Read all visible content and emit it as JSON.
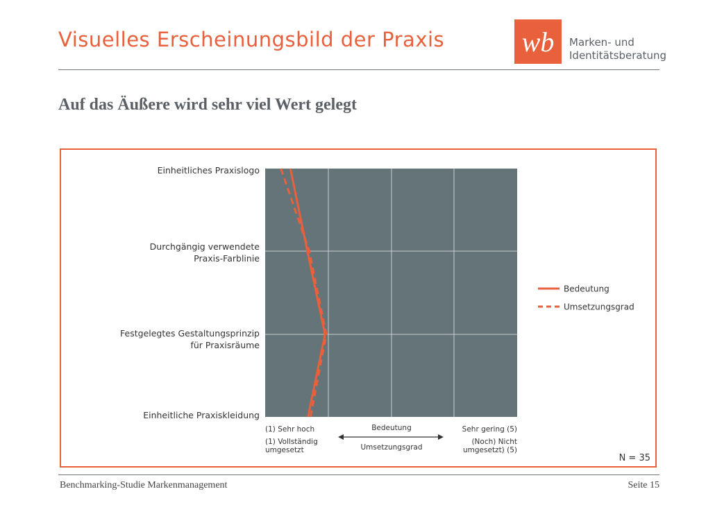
{
  "header": {
    "title": "Visuelles Erscheinungsbild der Praxis",
    "subtitle": "Auf das Äußere wird sehr viel Wert gelegt",
    "logo_mark": "wb",
    "logo_line1": "Marken- und",
    "logo_line2": "Identitätsberatung",
    "accent_color": "#e8603c"
  },
  "footer": {
    "left": "Benchmarking-Studie Markenmanagement",
    "right": "Seite 15"
  },
  "chart_data": {
    "type": "line",
    "categories": [
      "Einheitliches Praxislogo",
      "Durchgängig verwendete Praxis-Farblinie",
      "Festgelegtes Gestaltungsprinzip für Praxisräume",
      "Einheitliche Praxiskleidung"
    ],
    "category_lines": [
      [
        "Einheitliches Praxislogo"
      ],
      [
        "Durchgängig verwendete",
        "Praxis-Farblinie"
      ],
      [
        "Festgelegtes Gestaltungsprinzip",
        "für Praxisräume"
      ],
      [
        "Einheitliche Praxiskleidung"
      ]
    ],
    "xlim": [
      1,
      5
    ],
    "series": [
      {
        "name": "Bedeutung",
        "style": "solid",
        "color": "#e8603c",
        "values": [
          1.4,
          1.67,
          1.95,
          1.68
        ]
      },
      {
        "name": "Umsetzungsgrad",
        "style": "dashed",
        "color": "#e8603c",
        "values": [
          1.25,
          1.7,
          1.97,
          1.72
        ]
      }
    ],
    "axis": {
      "left_label_1": "(1) Sehr hoch",
      "center_label_1": "Bedeutung",
      "right_label_1": "Sehr gering (5)",
      "left_label_2": [
        "(1) Vollständig",
        "umgesetzt"
      ],
      "center_label_2": "Umsetzungsgrad",
      "right_label_2": [
        "(Noch) Nicht",
        "umgesetzt) (5)"
      ]
    },
    "sample_size": "N = 35",
    "plot_background": "#647479",
    "grid_color": "#c9ced0",
    "legend_position": "right"
  }
}
